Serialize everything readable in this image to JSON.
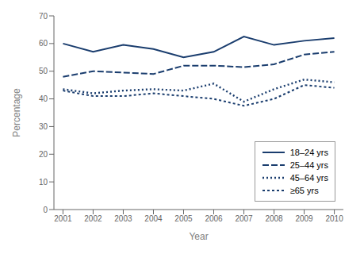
{
  "chart_data": {
    "type": "line",
    "x": [
      2001,
      2002,
      2003,
      2004,
      2005,
      2006,
      2007,
      2008,
      2009,
      2010
    ],
    "series": [
      {
        "name": "18–24 yrs",
        "color": "#1a3d6e",
        "line_style": "solid",
        "values": [
          60,
          57,
          59.5,
          58,
          55,
          57,
          62.5,
          59.5,
          61,
          62
        ]
      },
      {
        "name": "25–44 yrs",
        "color": "#1a3d6e",
        "line_style": "long_dash",
        "values": [
          48,
          50,
          49.5,
          49,
          52,
          52,
          51.5,
          52.5,
          56,
          57
        ]
      },
      {
        "name": "45–64 yrs",
        "color": "#1a3d6e",
        "line_style": "dotted",
        "values": [
          43.5,
          42,
          43,
          43.5,
          43,
          45.5,
          39,
          43.5,
          47,
          46
        ]
      },
      {
        "name": "≥65 yrs",
        "color": "#1a3d6e",
        "line_style": "short_dash",
        "values": [
          43,
          41,
          41,
          42,
          41,
          40,
          37.5,
          40,
          45,
          44
        ]
      }
    ],
    "x_label": "Year",
    "y_label": "Percentage",
    "xlim": [
      2000.7,
      2010.3
    ],
    "xticks": [
      2001,
      2002,
      2003,
      2004,
      2005,
      2006,
      2007,
      2008,
      2009,
      2010
    ],
    "ylim": [
      0,
      70
    ],
    "yticks": [
      0,
      10,
      20,
      30,
      40,
      50,
      60,
      70
    ],
    "grid": false,
    "legend": "lower right"
  }
}
